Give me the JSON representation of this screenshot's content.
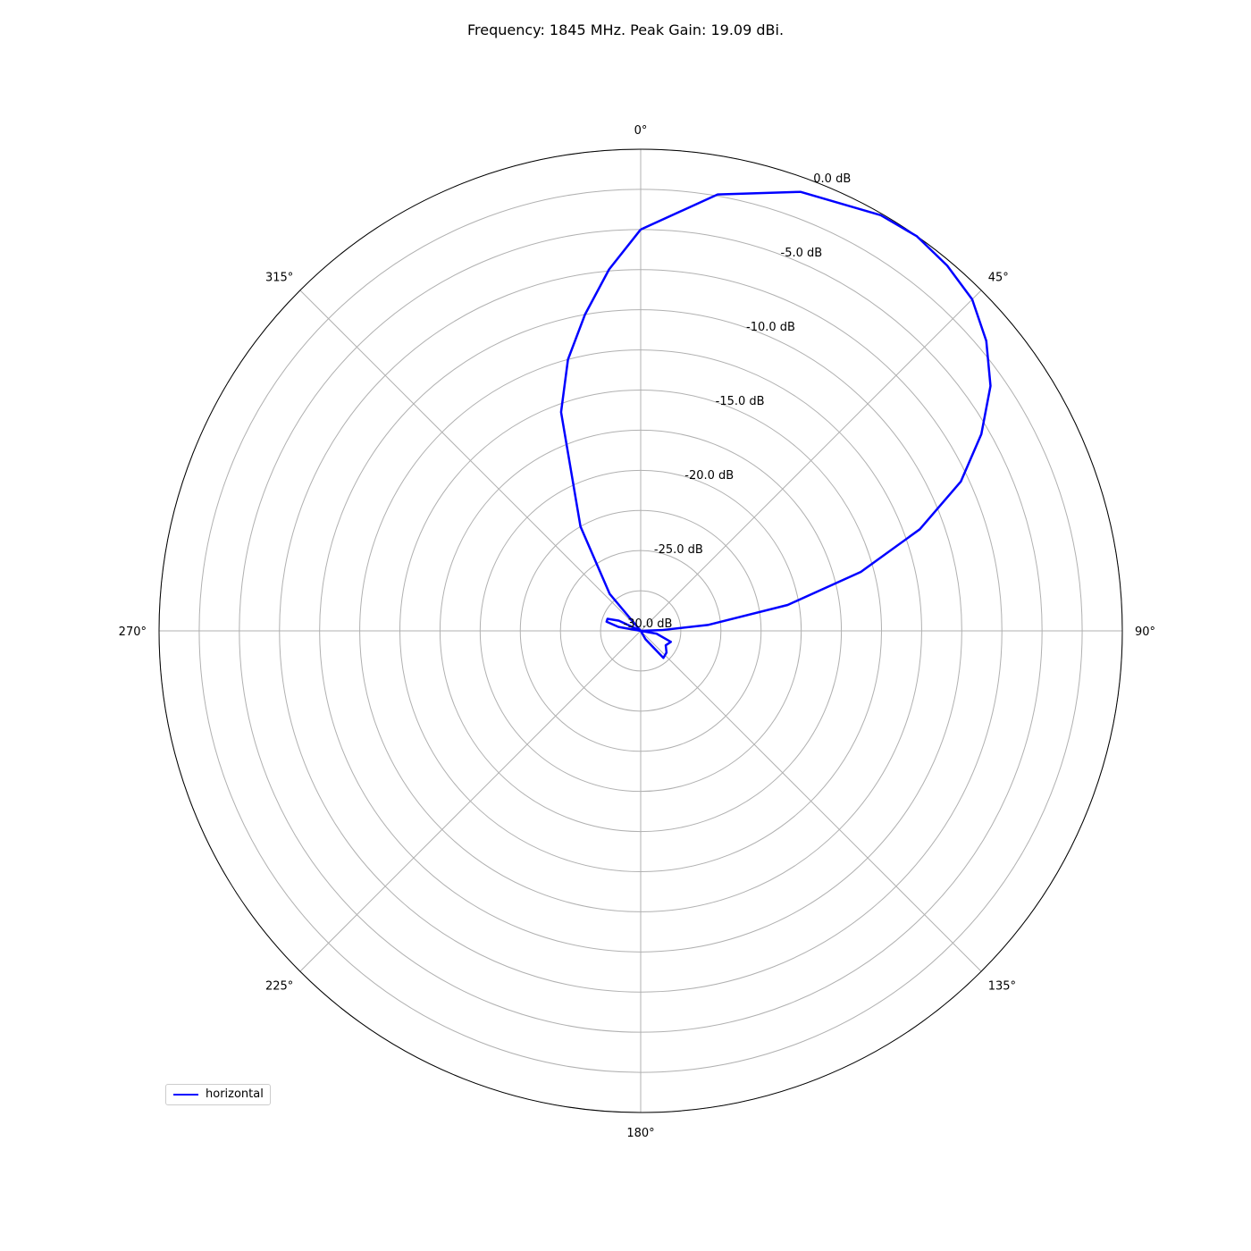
{
  "chart_data": {
    "type": "line",
    "projection": "polar",
    "title": "Frequency: 1845 MHz. Peak Gain: 19.09 dBi.",
    "angular_direction": "clockwise",
    "zero_location": "top",
    "angle_tick_labels": [
      "0°",
      "45°",
      "90°",
      "135°",
      "180°",
      "225°",
      "270°",
      "315°"
    ],
    "angle_ticks_deg": [
      0,
      45,
      90,
      135,
      180,
      225,
      270,
      315
    ],
    "radial_tick_labels": [
      "-30.0 dB",
      "-25.0 dB",
      "-20.0 dB",
      "-15.0 dB",
      "-10.0 dB",
      "-5.0 dB",
      "0.0 dB"
    ],
    "radial_ticks": [
      -30,
      -25,
      -20,
      -15,
      -10,
      -5,
      0
    ],
    "rlim": [
      -30,
      0
    ],
    "grid": true,
    "legend_position": "lower-left",
    "series": [
      {
        "name": "horizontal",
        "color": "#0000ff",
        "theta_deg": [
          0,
          10,
          20,
          30,
          35,
          40,
          45,
          50,
          55,
          60,
          65,
          70,
          75,
          80,
          85,
          88,
          90,
          100,
          110,
          120,
          130,
          140,
          150,
          160,
          170,
          180,
          190,
          200,
          210,
          220,
          230,
          240,
          250,
          260,
          270,
          280,
          285,
          290,
          295,
          300,
          310,
          320,
          330,
          340,
          345,
          350,
          355,
          360
        ],
        "r_db": [
          -5.0,
          -2.4,
          -0.9,
          -0.1,
          0.0,
          -0.3,
          -0.8,
          -1.9,
          -3.4,
          -5.5,
          -8.0,
          -11.5,
          -15.8,
          -20.7,
          -25.8,
          -28.7,
          -30.0,
          -29.0,
          -28.0,
          -28.2,
          -27.9,
          -27.8,
          -29.4,
          -30.0,
          -30.0,
          -30.0,
          -30.0,
          -30.0,
          -30.0,
          -30.0,
          -30.0,
          -30.0,
          -30.0,
          -30.0,
          -30.0,
          -28.6,
          -27.8,
          -27.8,
          -28.5,
          -30.0,
          -30.0,
          -27.0,
          -22.5,
          -15.5,
          -12.5,
          -10.0,
          -7.4,
          -5.0
        ]
      }
    ]
  }
}
